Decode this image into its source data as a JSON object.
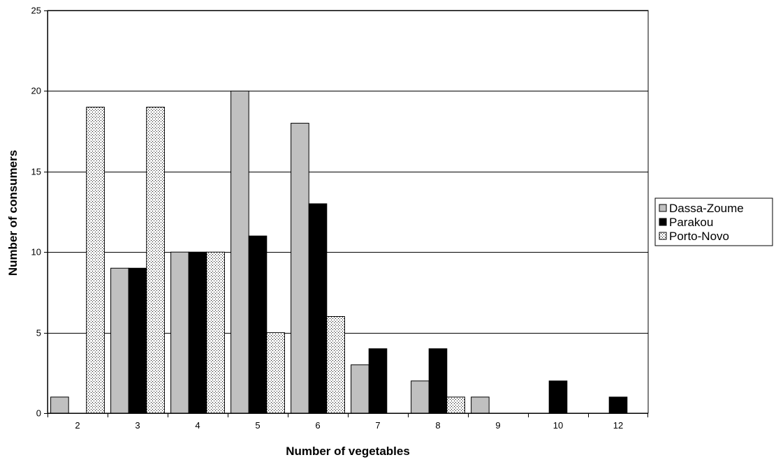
{
  "chart_data": {
    "type": "bar",
    "xlabel": "Number of vegetables",
    "ylabel": "Number of consumers",
    "categories": [
      "2",
      "3",
      "4",
      "5",
      "6",
      "7",
      "8",
      "9",
      "10",
      "12"
    ],
    "ylim": [
      0,
      25
    ],
    "yticks": [
      0,
      5,
      10,
      15,
      20,
      25
    ],
    "grid": true,
    "legend_position": "right",
    "series": [
      {
        "name": "Dassa-Zoume",
        "fill": "gray",
        "values": [
          1,
          9,
          10,
          20,
          18,
          3,
          2,
          1,
          0,
          0
        ]
      },
      {
        "name": "Parakou",
        "fill": "black",
        "values": [
          0,
          9,
          10,
          11,
          13,
          4,
          4,
          0,
          2,
          1
        ]
      },
      {
        "name": "Porto-Novo",
        "fill": "dotted",
        "values": [
          19,
          19,
          10,
          5,
          6,
          0,
          1,
          0,
          0,
          0
        ]
      }
    ]
  },
  "colors": {
    "gray": "#c0c0c0",
    "black": "#000000",
    "dotted_bg": "#ffffff",
    "dotted_dot": "#000000",
    "grid": "#000000"
  }
}
